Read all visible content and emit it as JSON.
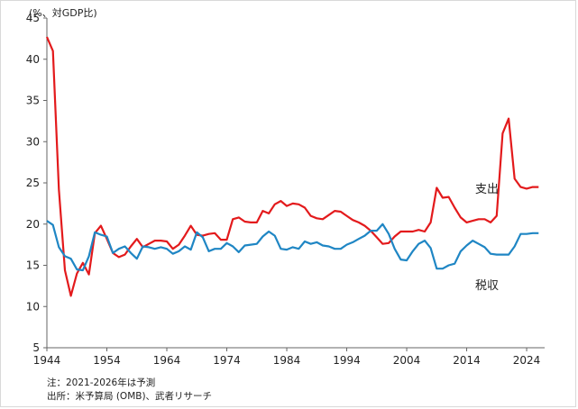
{
  "chart_data": {
    "type": "line",
    "title": "",
    "xlabel": "",
    "ylabel": "",
    "unit_label": "(%、対GDP比)",
    "xlim": [
      1944,
      2027
    ],
    "ylim": [
      5,
      45
    ],
    "y_ticks": [
      5,
      10,
      15,
      20,
      25,
      30,
      35,
      40,
      45
    ],
    "x_ticks": [
      1944,
      1954,
      1964,
      1974,
      1984,
      1994,
      2004,
      2014,
      2024
    ],
    "grid": false,
    "series": [
      {
        "name": "支出",
        "color": "#e31a1c",
        "x": [
          1944,
          1945,
          1946,
          1947,
          1948,
          1949,
          1950,
          1951,
          1952,
          1953,
          1954,
          1955,
          1956,
          1957,
          1958,
          1959,
          1960,
          1961,
          1962,
          1963,
          1964,
          1965,
          1966,
          1967,
          1968,
          1969,
          1970,
          1971,
          1972,
          1973,
          1974,
          1975,
          1976,
          1977,
          1978,
          1979,
          1980,
          1981,
          1982,
          1983,
          1984,
          1985,
          1986,
          1987,
          1988,
          1989,
          1990,
          1991,
          1992,
          1993,
          1994,
          1995,
          1996,
          1997,
          1998,
          1999,
          2000,
          2001,
          2002,
          2003,
          2004,
          2005,
          2006,
          2007,
          2008,
          2009,
          2010,
          2011,
          2012,
          2013,
          2014,
          2015,
          2016,
          2017,
          2018,
          2019,
          2020,
          2021,
          2022,
          2023,
          2024,
          2025,
          2026
        ],
        "values": [
          42.7,
          41.0,
          24.2,
          14.4,
          11.3,
          14.0,
          15.3,
          13.9,
          18.9,
          19.8,
          18.2,
          16.5,
          16.0,
          16.3,
          17.3,
          18.2,
          17.2,
          17.6,
          18.0,
          18.0,
          17.9,
          17.0,
          17.5,
          18.6,
          19.8,
          18.7,
          18.6,
          18.8,
          18.9,
          18.1,
          18.1,
          20.6,
          20.8,
          20.3,
          20.2,
          20.2,
          21.6,
          21.3,
          22.4,
          22.8,
          22.2,
          22.5,
          22.4,
          22.0,
          21.0,
          20.7,
          20.6,
          21.1,
          21.6,
          21.5,
          21.0,
          20.5,
          20.2,
          19.8,
          19.2,
          18.4,
          17.6,
          17.7,
          18.5,
          19.1,
          19.1,
          19.1,
          19.3,
          19.1,
          20.2,
          24.4,
          23.2,
          23.3,
          22.0,
          20.8,
          20.2,
          20.4,
          20.6,
          20.6,
          20.2,
          21.0,
          31.0,
          32.8,
          25.5,
          24.5,
          24.3,
          24.5,
          24.5
        ]
      },
      {
        "name": "税収",
        "color": "#1f86c4",
        "x": [
          1944,
          1945,
          1946,
          1947,
          1948,
          1949,
          1950,
          1951,
          1952,
          1953,
          1954,
          1955,
          1956,
          1957,
          1958,
          1959,
          1960,
          1961,
          1962,
          1963,
          1964,
          1965,
          1966,
          1967,
          1968,
          1969,
          1970,
          1971,
          1972,
          1973,
          1974,
          1975,
          1976,
          1977,
          1978,
          1979,
          1980,
          1981,
          1982,
          1983,
          1984,
          1985,
          1986,
          1987,
          1988,
          1989,
          1990,
          1991,
          1992,
          1993,
          1994,
          1995,
          1996,
          1997,
          1998,
          1999,
          2000,
          2001,
          2002,
          2003,
          2004,
          2005,
          2006,
          2007,
          2008,
          2009,
          2010,
          2011,
          2012,
          2013,
          2014,
          2015,
          2016,
          2017,
          2018,
          2019,
          2020,
          2021,
          2022,
          2023,
          2024,
          2025,
          2026
        ],
        "values": [
          20.4,
          19.9,
          17.2,
          16.1,
          15.8,
          14.5,
          14.4,
          16.1,
          19.0,
          18.7,
          18.5,
          16.5,
          17.0,
          17.3,
          16.5,
          15.8,
          17.3,
          17.2,
          17.0,
          17.2,
          17.0,
          16.4,
          16.7,
          17.3,
          16.9,
          19.0,
          18.4,
          16.7,
          17.0,
          17.0,
          17.7,
          17.3,
          16.6,
          17.4,
          17.5,
          17.6,
          18.5,
          19.1,
          18.6,
          17.0,
          16.9,
          17.2,
          17.0,
          17.9,
          17.6,
          17.8,
          17.4,
          17.3,
          17.0,
          17.0,
          17.5,
          17.8,
          18.2,
          18.6,
          19.2,
          19.2,
          20.0,
          18.8,
          17.0,
          15.7,
          15.6,
          16.7,
          17.6,
          18.0,
          17.1,
          14.6,
          14.6,
          15.0,
          15.2,
          16.7,
          17.4,
          18.0,
          17.6,
          17.2,
          16.4,
          16.3,
          16.3,
          16.3,
          17.3,
          18.8,
          18.8,
          18.9,
          18.9
        ]
      }
    ],
    "notes": [
      "注：2021-2026年は予測",
      "出所：米予算局 (OMB)、武者リサーチ"
    ]
  }
}
